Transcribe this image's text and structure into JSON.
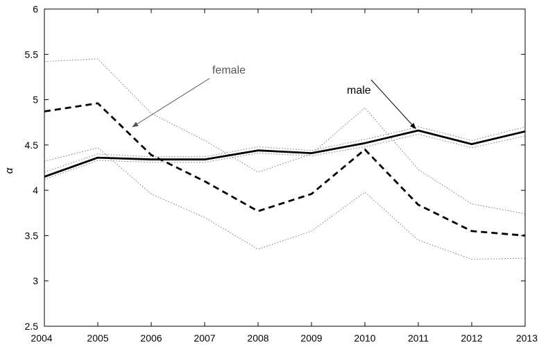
{
  "chart_data": {
    "type": "line",
    "x": [
      2004,
      2005,
      2006,
      2007,
      2008,
      2009,
      2010,
      2011,
      2012,
      2013
    ],
    "xlim": [
      2004,
      2013
    ],
    "ylim": [
      2.5,
      6
    ],
    "ylabel": "α",
    "xticks": [
      "2004",
      "2005",
      "2006",
      "2007",
      "2008",
      "2009",
      "2010",
      "2011",
      "2012",
      "2013"
    ],
    "yticks": [
      "2.5",
      "3",
      "3.5",
      "4",
      "4.5",
      "5",
      "5.5",
      "6"
    ],
    "grid": false,
    "series": [
      {
        "key": "male",
        "style": "solid",
        "color": "#000000",
        "values": [
          4.15,
          4.36,
          4.34,
          4.34,
          4.44,
          4.41,
          4.52,
          4.66,
          4.51,
          4.65
        ]
      },
      {
        "key": "female",
        "style": "dashed",
        "color": "#000000",
        "values": [
          4.87,
          4.96,
          4.39,
          4.1,
          3.77,
          3.96,
          4.45,
          3.84,
          3.55,
          3.5
        ]
      },
      {
        "key": "male-upper",
        "style": "dotted",
        "color": "#777777",
        "values": [
          4.2,
          4.4,
          4.37,
          4.37,
          4.48,
          4.44,
          4.56,
          4.7,
          4.55,
          4.7
        ]
      },
      {
        "key": "male-lower",
        "style": "dotted",
        "color": "#777777",
        "values": [
          4.12,
          4.33,
          4.31,
          4.31,
          4.41,
          4.38,
          4.48,
          4.62,
          4.47,
          4.6
        ]
      },
      {
        "key": "female-upper",
        "style": "dotted",
        "color": "#777777",
        "values": [
          5.42,
          5.45,
          4.85,
          4.55,
          4.2,
          4.4,
          4.91,
          4.23,
          3.85,
          3.74
        ]
      },
      {
        "key": "female-lower",
        "style": "dotted",
        "color": "#777777",
        "values": [
          4.32,
          4.47,
          3.96,
          3.7,
          3.35,
          3.55,
          3.98,
          3.45,
          3.24,
          3.25
        ]
      }
    ],
    "annotations": [
      {
        "key": "female",
        "text": "female",
        "color": "#555555",
        "arrow_to": [
          2005.65,
          4.7
        ]
      },
      {
        "key": "male",
        "text": "male",
        "color": "#000000",
        "arrow_to": [
          2010.95,
          4.68
        ]
      }
    ]
  }
}
